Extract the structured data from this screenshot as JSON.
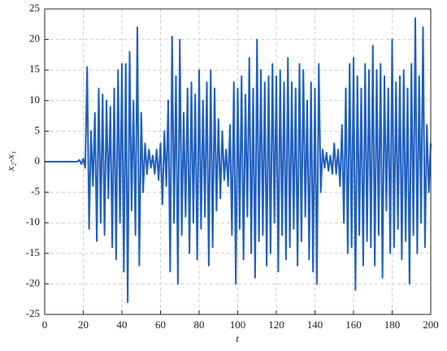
{
  "chart_data": {
    "type": "line",
    "x_label": "t",
    "y_label": "x₂-x₁",
    "x": [
      0,
      1,
      2,
      3,
      4,
      5,
      6,
      7,
      8,
      9,
      10,
      11,
      12,
      13,
      14,
      15,
      16,
      17,
      18,
      19,
      20,
      21,
      22,
      23,
      24,
      25,
      26,
      27,
      28,
      29,
      30,
      31,
      32,
      33,
      34,
      35,
      36,
      37,
      38,
      39,
      40,
      41,
      42,
      43,
      44,
      45,
      46,
      47,
      48,
      49,
      50,
      51,
      52,
      53,
      54,
      55,
      56,
      57,
      58,
      59,
      60,
      61,
      62,
      63,
      64,
      65,
      66,
      67,
      68,
      69,
      70,
      71,
      72,
      73,
      74,
      75,
      76,
      77,
      78,
      79,
      80,
      81,
      82,
      83,
      84,
      85,
      86,
      87,
      88,
      89,
      90,
      91,
      92,
      93,
      94,
      95,
      96,
      97,
      98,
      99,
      100,
      101,
      102,
      103,
      104,
      105,
      106,
      107,
      108,
      109,
      110,
      111,
      112,
      113,
      114,
      115,
      116,
      117,
      118,
      119,
      120,
      121,
      122,
      123,
      124,
      125,
      126,
      127,
      128,
      129,
      130,
      131,
      132,
      133,
      134,
      135,
      136,
      137,
      138,
      139,
      140,
      141,
      142,
      143,
      144,
      145,
      146,
      147,
      148,
      149,
      150,
      151,
      152,
      153,
      154,
      155,
      156,
      157,
      158,
      159,
      160,
      161,
      162,
      163,
      164,
      165,
      166,
      167,
      168,
      169,
      170,
      171,
      172,
      173,
      174,
      175,
      176,
      177,
      178,
      179,
      180,
      181,
      182,
      183,
      184,
      185,
      186,
      187,
      188,
      189,
      190,
      191,
      192,
      193,
      194,
      195,
      196,
      197,
      198,
      199,
      200
    ],
    "series": [
      {
        "color": "#1f5fbf",
        "values": [
          0,
          0,
          0,
          0,
          0,
          0,
          0,
          0,
          0,
          0,
          0,
          0,
          0,
          0,
          0,
          0,
          0,
          0,
          0.3,
          -0.4,
          0.5,
          -1,
          15.5,
          -11,
          5,
          -4,
          8,
          -13,
          12,
          -10,
          11,
          -12,
          10,
          -6,
          9,
          -14,
          12,
          -16,
          15,
          -10,
          16,
          -18,
          16,
          -23,
          18,
          -8,
          10,
          -12,
          22,
          -17,
          8,
          -5,
          3,
          -2,
          2,
          -1,
          1,
          -2,
          2,
          -3,
          3,
          -7,
          5,
          -4,
          10,
          -18,
          20.5,
          -10,
          14,
          -20,
          20,
          -12,
          8,
          -9,
          12,
          -15,
          13,
          -10,
          11,
          -16,
          15,
          -11,
          10,
          -9,
          13,
          -17,
          15,
          -14,
          12,
          -8,
          7,
          -6,
          5,
          -3,
          2,
          -4,
          6,
          -12,
          13,
          -20,
          12,
          -11,
          14,
          -16,
          11,
          -9,
          17,
          -15,
          12,
          -19,
          20,
          -13,
          15,
          -12,
          13,
          -17,
          14,
          -15,
          16,
          -10,
          14,
          -18,
          15,
          -12,
          13,
          -16,
          17,
          -14,
          13,
          -11,
          12,
          -17,
          16,
          -13,
          15,
          -9,
          10,
          -16,
          13,
          -18,
          12,
          -20,
          16,
          -5,
          2,
          -1,
          1.5,
          -1.5,
          1,
          -2,
          3,
          -2,
          2,
          -4,
          6,
          -10,
          12,
          -15,
          16,
          -14,
          17,
          -21,
          14,
          -12,
          12,
          -17,
          16,
          -13,
          15,
          -14,
          19,
          -17,
          15,
          -12,
          16,
          -19,
          14,
          -8,
          12,
          -15,
          20,
          -14,
          13,
          -11,
          14,
          -16,
          15,
          -13,
          12,
          -20,
          16,
          -12,
          23.5,
          -15,
          14,
          -10,
          22,
          -14,
          6,
          -5,
          3
        ]
      }
    ],
    "xlim": [
      0,
      200
    ],
    "xticks": [
      0,
      20,
      40,
      60,
      80,
      100,
      120,
      140,
      160,
      180,
      200
    ],
    "ylim": [
      -25,
      25
    ],
    "yticks": [
      -25,
      -20,
      -15,
      -10,
      -5,
      0,
      5,
      10,
      15,
      20,
      25
    ],
    "grid": true
  }
}
